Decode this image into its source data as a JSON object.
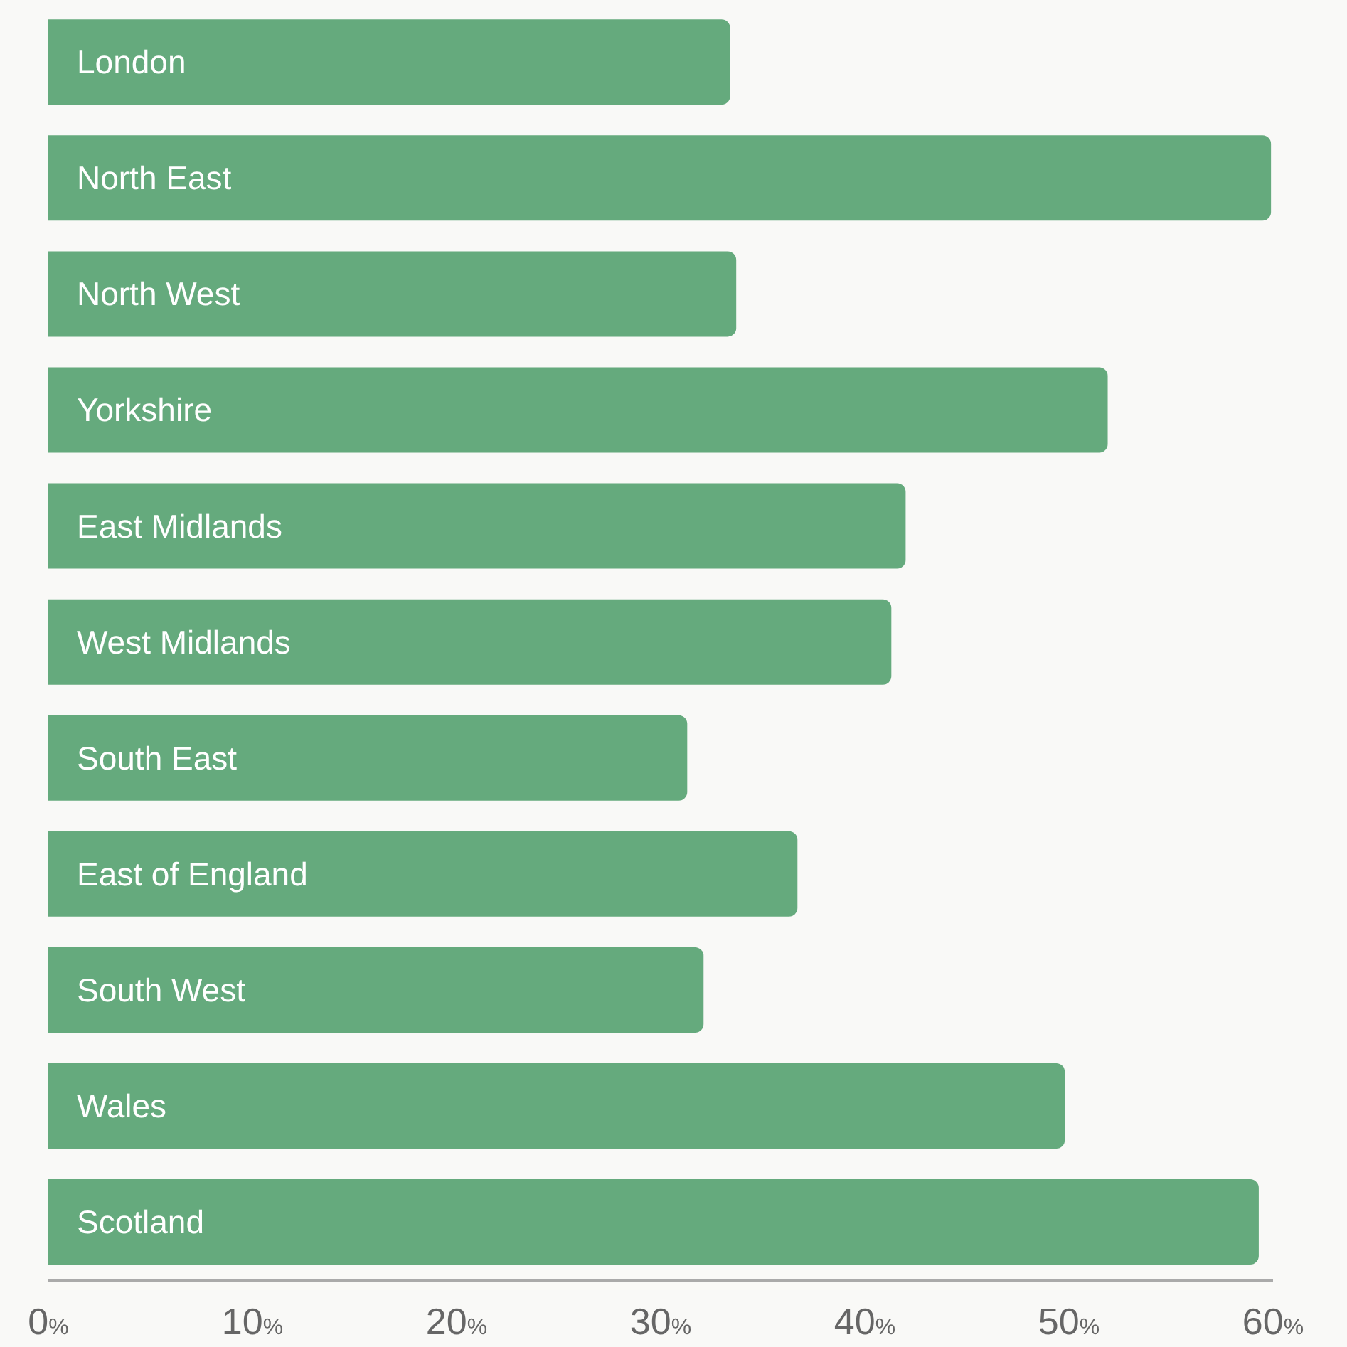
{
  "chart_data": {
    "type": "bar",
    "orientation": "horizontal",
    "categories": [
      "London",
      "North East",
      "North West",
      "Yorkshire",
      "East Midlands",
      "West Midlands",
      "South East",
      "East of England",
      "South West",
      "Wales",
      "Scotland"
    ],
    "values": [
      33.4,
      59.9,
      33.7,
      51.9,
      42,
      41.3,
      31.3,
      36.7,
      32.1,
      49.8,
      59.3
    ],
    "color": "#65aa7d",
    "xlim": [
      0,
      60
    ],
    "xticks": [
      {
        "value": 0,
        "label": "0%"
      },
      {
        "value": 10,
        "label": "10%"
      },
      {
        "value": 20,
        "label": "20%"
      },
      {
        "value": 30,
        "label": "30%"
      },
      {
        "value": 40,
        "label": "40%"
      },
      {
        "value": 50,
        "label": "50%"
      },
      {
        "value": 60,
        "label": "60%"
      }
    ],
    "grid": false
  }
}
